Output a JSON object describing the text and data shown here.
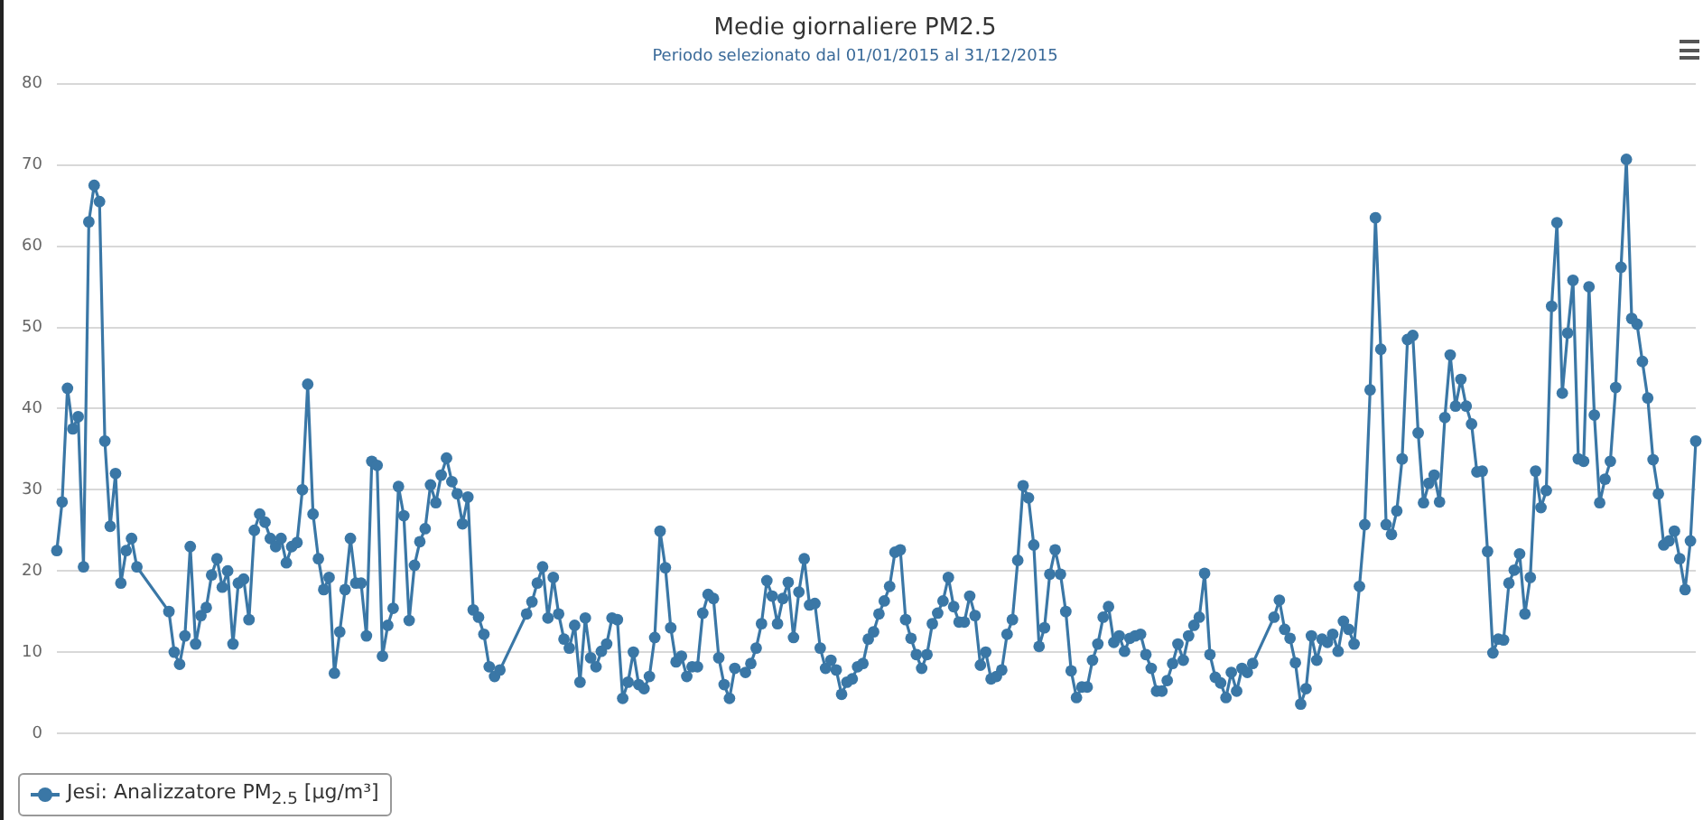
{
  "chart_data": {
    "type": "line",
    "title": "Medie giornaliere PM2.5",
    "subtitle": "Periodo selezionato dal 01/01/2015 al 31/12/2015",
    "categories": [
      null,
      null,
      null,
      null,
      null,
      null,
      null,
      null,
      null,
      null,
      null,
      null,
      null,
      null,
      null,
      null,
      null,
      null,
      null,
      null,
      null,
      null,
      null,
      null,
      null,
      null,
      null,
      null,
      null,
      null,
      null,
      null,
      null,
      null,
      null,
      null,
      null,
      null,
      null,
      null,
      null,
      null,
      null,
      null,
      null,
      null,
      null,
      null,
      null,
      null,
      null,
      null,
      null,
      null,
      null,
      null,
      null,
      null,
      null,
      null,
      null,
      null,
      null,
      null,
      null,
      null,
      null,
      null,
      null,
      null,
      null,
      null,
      null,
      null,
      null,
      null,
      null,
      null,
      null,
      null,
      null,
      null,
      null,
      null,
      null,
      null,
      null,
      null,
      null,
      null,
      null,
      null,
      null,
      null,
      null,
      null,
      null,
      null,
      null,
      null,
      null,
      null,
      null,
      null,
      null,
      null,
      null,
      null,
      null,
      null,
      null,
      null,
      null,
      null,
      null,
      null,
      null,
      null,
      null,
      null,
      null,
      null,
      null,
      null,
      null,
      null,
      null,
      null,
      null,
      null,
      null,
      null,
      null,
      null,
      null,
      null,
      null,
      null,
      null,
      null,
      null,
      null,
      null,
      null,
      null,
      null,
      null,
      null,
      null,
      null,
      null,
      null,
      null,
      null,
      null,
      null,
      null,
      null,
      null,
      null,
      null,
      null,
      null,
      null,
      null,
      null,
      null,
      null,
      null,
      null,
      null,
      null,
      null,
      null,
      null,
      null,
      null,
      null,
      null,
      null,
      null,
      null,
      null,
      null,
      null,
      null,
      null,
      null,
      null,
      null,
      null,
      null,
      null,
      null,
      null,
      null,
      null,
      null,
      null,
      null,
      null,
      null,
      null,
      null,
      null,
      null,
      null,
      null,
      null,
      null,
      null,
      null,
      null,
      null,
      null,
      null,
      null,
      null,
      null,
      null,
      null,
      null,
      null,
      null,
      null,
      null,
      null,
      null,
      null,
      null,
      null,
      null,
      null,
      null,
      null,
      null,
      null,
      null,
      null,
      null,
      null,
      null,
      null,
      null,
      null,
      null,
      null,
      null,
      null,
      null,
      null,
      null,
      null,
      null,
      null,
      null,
      null,
      null,
      null,
      null,
      null,
      null,
      null,
      null,
      null,
      null,
      null,
      null,
      null,
      null,
      null,
      null,
      null,
      null,
      null,
      null,
      null,
      null,
      null,
      null,
      null,
      null,
      null,
      null,
      null,
      null,
      null,
      null,
      null,
      null,
      null,
      null,
      null,
      null,
      null,
      null,
      null,
      null,
      null,
      null,
      null,
      null,
      null,
      null,
      null,
      null,
      null,
      null
    ],
    "series": [
      {
        "name": "Jesi: Analizzatore PM$_{2.5}$ [µg/m³]",
        "color": "#3a77a6",
        "values": [
          22.5,
          28.5,
          42.5,
          37.5,
          39,
          20.5,
          63,
          67.5,
          65.5,
          36,
          25.5,
          32,
          18.5,
          22.5,
          24,
          20.5,
          null,
          null,
          null,
          null,
          null,
          15,
          10,
          8.5,
          12,
          23,
          11,
          14.5,
          15.5,
          19.5,
          21.5,
          18,
          20,
          11,
          18.5,
          19,
          14,
          25,
          27,
          26,
          24,
          23,
          24,
          21,
          23,
          23.5,
          30,
          43,
          27,
          21.5,
          17.7,
          19.2,
          7.4,
          12.5,
          17.7,
          24,
          18.5,
          18.5,
          12,
          33.5,
          33,
          9.5,
          13.3,
          15.4,
          30.4,
          26.8,
          13.9,
          20.7,
          23.6,
          25.2,
          30.6,
          28.4,
          31.8,
          33.9,
          31,
          29.5,
          25.8,
          29.1,
          15.2,
          14.3,
          12.2,
          8.2,
          7,
          7.8,
          null,
          null,
          null,
          null,
          14.7,
          16.2,
          18.5,
          20.5,
          14.2,
          19.2,
          14.7,
          11.6,
          10.5,
          13.3,
          6.3,
          14.2,
          9.3,
          8.2,
          10.1,
          11,
          14.2,
          14,
          4.3,
          6.3,
          10,
          6,
          5.5,
          7,
          11.8,
          24.9,
          20.4,
          13,
          8.8,
          9.5,
          7,
          8.2,
          8.2,
          14.8,
          17.1,
          16.6,
          9.3,
          6,
          4.3,
          8,
          null,
          7.5,
          8.6,
          10.5,
          13.5,
          18.8,
          16.9,
          13.5,
          16.6,
          18.6,
          11.8,
          17.4,
          21.5,
          15.8,
          16,
          10.5,
          8,
          9,
          7.8,
          4.8,
          6.3,
          6.7,
          8.2,
          8.6,
          11.6,
          12.5,
          14.7,
          16.3,
          18.1,
          22.3,
          22.6,
          14,
          11.7,
          9.7,
          8,
          9.7,
          13.5,
          14.8,
          16.3,
          19.2,
          15.6,
          13.7,
          13.7,
          16.9,
          14.5,
          8.4,
          10,
          6.7,
          7,
          7.8,
          12.2,
          14,
          21.3,
          30.5,
          29,
          23.2,
          10.7,
          13,
          19.6,
          22.6,
          19.6,
          15,
          7.7,
          4.4,
          5.7,
          5.7,
          9,
          11,
          14.3,
          15.6,
          11.2,
          12,
          10.1,
          11.7,
          12,
          12.2,
          9.7,
          8,
          5.2,
          5.2,
          6.5,
          8.6,
          11,
          9,
          12,
          13.3,
          14.3,
          19.7,
          9.7,
          6.9,
          6.2,
          4.4,
          7.5,
          5.2,
          8,
          7.5,
          8.6,
          null,
          null,
          null,
          14.3,
          16.4,
          12.8,
          11.7,
          8.7,
          3.6,
          5.5,
          12,
          9,
          11.6,
          11.2,
          12.2,
          10.1,
          13.8,
          12.8,
          11,
          18.1,
          25.7,
          42.3,
          63.5,
          47.3,
          25.7,
          24.5,
          27.4,
          33.8,
          48.5,
          49,
          37,
          28.4,
          30.8,
          31.8,
          28.5,
          38.9,
          46.6,
          40.3,
          43.6,
          40.3,
          38.1,
          32.2,
          32.3,
          22.4,
          9.9,
          11.6,
          11.5,
          18.5,
          20.1,
          22.1,
          14.7,
          19.2,
          32.3,
          27.8,
          29.9,
          52.6,
          62.9,
          41.9,
          49.3,
          55.8,
          33.8,
          33.5,
          55,
          39.2,
          28.4,
          31.3,
          33.5,
          42.6,
          57.4,
          70.7,
          51.1,
          50.4,
          45.8,
          41.3,
          33.7,
          29.5,
          23.2,
          23.7,
          24.9,
          21.5,
          17.7,
          23.7,
          36
        ]
      }
    ],
    "ylim": [
      0,
      80
    ],
    "yticks": [
      0,
      10,
      20,
      30,
      40,
      50,
      60,
      70,
      80
    ],
    "grid": "y",
    "legend": "bottom left",
    "tick_labels": "y",
    "marker": "circle",
    "line_style": "solid"
  }
}
